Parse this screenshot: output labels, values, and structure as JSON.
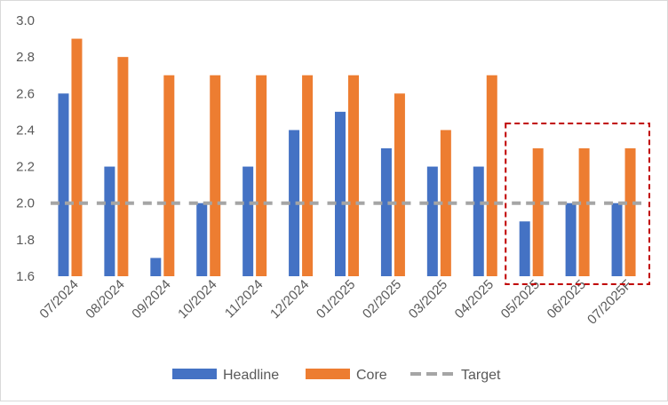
{
  "chart_data": {
    "type": "bar",
    "title": "",
    "xlabel": "",
    "ylabel": "",
    "categories": [
      "07/2024",
      "08/2024",
      "09/2024",
      "10/2024",
      "11/2024",
      "12/2024",
      "01/2025",
      "02/2025",
      "03/2025",
      "04/2025",
      "05/2025",
      "06/2025",
      "07/2025F"
    ],
    "series": [
      {
        "name": "Headline",
        "kind": "bar",
        "color": "#4472c4",
        "values": [
          2.6,
          2.2,
          1.7,
          2.0,
          2.2,
          2.4,
          2.5,
          2.3,
          2.2,
          2.2,
          1.9,
          2.0,
          2.0
        ]
      },
      {
        "name": "Core",
        "kind": "bar",
        "color": "#ed7d31",
        "values": [
          2.9,
          2.8,
          2.7,
          2.7,
          2.7,
          2.7,
          2.7,
          2.6,
          2.4,
          2.7,
          2.3,
          2.3,
          2.3
        ]
      },
      {
        "name": "Target",
        "kind": "dashed-line",
        "color": "#a5a5a5",
        "values": [
          2.0,
          2.0,
          2.0,
          2.0,
          2.0,
          2.0,
          2.0,
          2.0,
          2.0,
          2.0,
          2.0,
          2.0,
          2.0
        ]
      }
    ],
    "yticks": [
      "1.6",
      "1.8",
      "2.0",
      "2.2",
      "2.4",
      "2.6",
      "2.8",
      "3.0"
    ],
    "ylim": [
      1.6,
      3.0
    ],
    "grid": false,
    "legend": "bottom",
    "highlight": {
      "categories": [
        "05/2025",
        "06/2025",
        "07/2025F"
      ],
      "style": "dashed-box",
      "color": "#c00000"
    }
  }
}
